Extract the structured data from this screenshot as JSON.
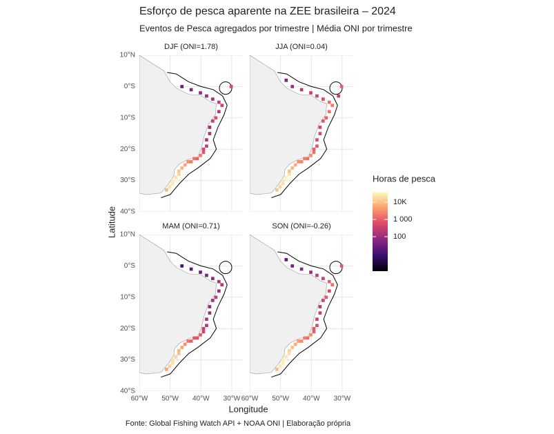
{
  "chart_data": {
    "type": "heatmap-facets",
    "title": "Esforço de pesca aparente na ZEE brasileira – 2024",
    "subtitle": "Eventos de Pesca agregados por trimestre | Média ONI por trimestre",
    "x_label": "Longitude",
    "y_label": "Latitude",
    "caption": "Fonte: Global Fishing Watch API + NOAA ONI | Elaboração própria",
    "xlim": [
      -60,
      -26.4
    ],
    "ylim": [
      -40,
      10
    ],
    "xticks": [
      {
        "value": -60,
        "label": "60°W"
      },
      {
        "value": -50,
        "label": "50°W"
      },
      {
        "value": -40,
        "label": "40°W"
      },
      {
        "value": -30,
        "label": "30°W"
      }
    ],
    "yticks": [
      {
        "value": 10,
        "label": "10°N"
      },
      {
        "value": 0,
        "label": "0°S"
      },
      {
        "value": -10,
        "label": "10°S"
      },
      {
        "value": -20,
        "label": "20°S"
      },
      {
        "value": -30,
        "label": "30°S"
      },
      {
        "value": -40,
        "label": "40°S"
      }
    ],
    "grid": true,
    "cell_lon": [
      -52,
      -51,
      -50,
      -50,
      -49,
      -48,
      -48,
      -47,
      -46,
      -45,
      -44,
      -43,
      -42,
      -41,
      -40,
      -40,
      -39,
      -39,
      -38,
      -38,
      -37,
      -36,
      -35,
      -34,
      -35,
      -37,
      -39,
      -41,
      -44,
      -47,
      -49,
      -31,
      -32
    ],
    "cell_lat": [
      -33,
      -32,
      -31,
      -30,
      -29,
      -28,
      -27,
      -26,
      -25,
      -24,
      -24,
      -23,
      -23,
      -22,
      -21,
      -20,
      -19,
      -17,
      -15,
      -13,
      -11,
      -10,
      -8,
      -6,
      -5,
      -4,
      -3,
      -2,
      -1,
      0,
      2,
      0,
      -3
    ],
    "panels": [
      {
        "title": "DJF (ONI=1.78)",
        "hours": [
          8000,
          20000,
          25000,
          30000,
          20000,
          15000,
          12000,
          8000,
          5000,
          3000,
          2000,
          1500,
          1000,
          2000,
          800,
          500,
          300,
          200,
          150,
          100,
          300,
          600,
          200,
          400,
          300,
          150,
          100,
          80,
          50,
          30,
          null,
          500,
          null
        ]
      },
      {
        "title": "JJA (ONI=0.04)",
        "hours": [
          10000,
          15000,
          20000,
          25000,
          30000,
          20000,
          10000,
          8000,
          6000,
          3000,
          2500,
          2000,
          1500,
          3000,
          1500,
          1000,
          800,
          600,
          500,
          400,
          800,
          1000,
          1500,
          2000,
          1500,
          600,
          400,
          300,
          200,
          100,
          50,
          1000,
          300
        ]
      },
      {
        "title": "MAM (ONI=0.71)",
        "hours": [
          5000,
          15000,
          20000,
          20000,
          15000,
          10000,
          8000,
          5000,
          3000,
          1500,
          1000,
          800,
          700,
          900,
          400,
          300,
          200,
          150,
          100,
          80,
          150,
          300,
          100,
          200,
          150,
          80,
          50,
          30,
          20,
          10,
          null,
          null,
          null
        ]
      },
      {
        "title": "SON (ONI=-0.26)",
        "hours": [
          8000,
          25000,
          30000,
          30000,
          25000,
          20000,
          15000,
          10000,
          6000,
          4000,
          3000,
          2000,
          1500,
          3000,
          1000,
          800,
          600,
          400,
          300,
          200,
          400,
          800,
          500,
          1500,
          1000,
          400,
          300,
          100,
          60,
          40,
          20,
          800,
          null
        ]
      }
    ],
    "legend": {
      "title": "Horas de pesca",
      "log_scale": true,
      "lim": [
        1,
        40000
      ],
      "ticks": [
        100,
        {
          "value": 1000,
          "label": "1 000"
        },
        {
          "value": 10000,
          "label": "10K"
        }
      ]
    }
  }
}
